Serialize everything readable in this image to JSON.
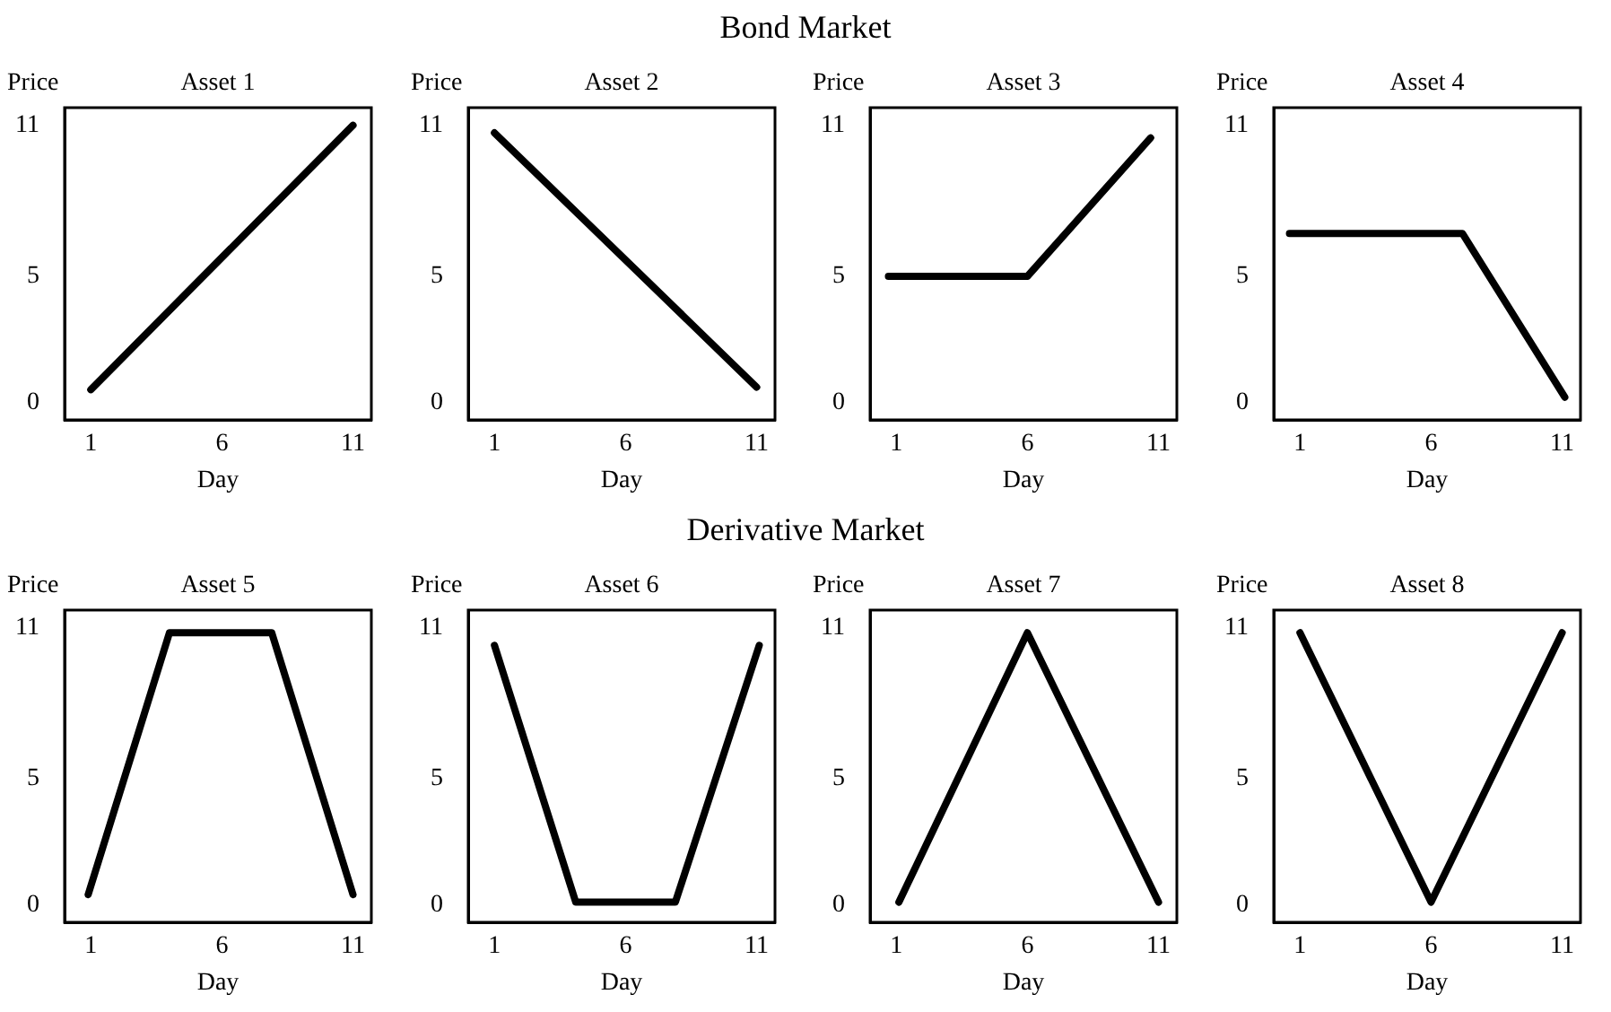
{
  "chart_data": [
    {
      "type": "line",
      "title": "Asset 1",
      "xlabel": "Day",
      "ylabel": "Price",
      "annotations": [
        "Bond Market"
      ],
      "x": [
        1,
        11
      ],
      "values": [
        0.5,
        11
      ],
      "color": "#000000",
      "line_style": "solid",
      "xlim": [
        0,
        11.7
      ],
      "ylim": [
        -0.7,
        11.7
      ],
      "xticks": [
        1,
        6,
        11
      ],
      "yticks": [
        0,
        5,
        11
      ]
    },
    {
      "type": "line",
      "title": "Asset 2",
      "xlabel": "Day",
      "ylabel": "Price",
      "x": [
        1,
        11
      ],
      "values": [
        10.7,
        0.6
      ],
      "color": "#000000",
      "line_style": "solid",
      "xlim": [
        0,
        11.7
      ],
      "ylim": [
        -0.7,
        11.7
      ],
      "xticks": [
        1,
        6,
        11
      ],
      "yticks": [
        0,
        5,
        11
      ]
    },
    {
      "type": "line",
      "title": "Asset 3",
      "xlabel": "Day",
      "ylabel": "Price",
      "x": [
        0.7,
        6,
        10.7
      ],
      "values": [
        5,
        5,
        10.5
      ],
      "color": "#000000",
      "line_style": "solid",
      "xlim": [
        0,
        11.7
      ],
      "ylim": [
        -0.7,
        11.7
      ],
      "xticks": [
        1,
        6,
        11
      ],
      "yticks": [
        0,
        5,
        11
      ]
    },
    {
      "type": "line",
      "title": "Asset 4",
      "xlabel": "Day",
      "ylabel": "Price",
      "x": [
        0.6,
        7.2,
        11.1
      ],
      "values": [
        6.7,
        6.7,
        0.2
      ],
      "color": "#000000",
      "line_style": "solid",
      "xlim": [
        0,
        11.7
      ],
      "ylim": [
        -0.7,
        11.7
      ],
      "xticks": [
        1,
        6,
        11
      ],
      "yticks": [
        0,
        5,
        11
      ]
    },
    {
      "type": "line",
      "title": "Asset 5",
      "xlabel": "Day",
      "ylabel": "Price",
      "annotations": [
        "Derivative Market"
      ],
      "x": [
        0.9,
        4,
        7.9,
        11
      ],
      "values": [
        0.4,
        10.8,
        10.8,
        0.4
      ],
      "color": "#000000",
      "line_style": "solid",
      "xlim": [
        0,
        11.7
      ],
      "ylim": [
        -0.7,
        11.7
      ],
      "xticks": [
        1,
        6,
        11
      ],
      "yticks": [
        0,
        5,
        11
      ]
    },
    {
      "type": "line",
      "title": "Asset 6",
      "xlabel": "Day",
      "ylabel": "Price",
      "x": [
        1,
        4.1,
        7.9,
        11.1
      ],
      "values": [
        10.3,
        0.1,
        0.1,
        10.3
      ],
      "color": "#000000",
      "line_style": "solid",
      "xlim": [
        0,
        11.7
      ],
      "ylim": [
        -0.7,
        11.7
      ],
      "xticks": [
        1,
        6,
        11
      ],
      "yticks": [
        0,
        5,
        11
      ]
    },
    {
      "type": "line",
      "title": "Asset 7",
      "xlabel": "Day",
      "ylabel": "Price",
      "x": [
        1.1,
        6,
        11
      ],
      "values": [
        0.1,
        10.8,
        0.1
      ],
      "color": "#000000",
      "line_style": "solid",
      "xlim": [
        0,
        11.7
      ],
      "ylim": [
        -0.7,
        11.7
      ],
      "xticks": [
        1,
        6,
        11
      ],
      "yticks": [
        0,
        5,
        11
      ]
    },
    {
      "type": "line",
      "title": "Asset 8",
      "xlabel": "Day",
      "ylabel": "Price",
      "x": [
        1,
        6,
        11
      ],
      "values": [
        10.8,
        0.1,
        10.8
      ],
      "color": "#000000",
      "line_style": "solid",
      "xlim": [
        0,
        11.7
      ],
      "ylim": [
        -0.7,
        11.7
      ],
      "xticks": [
        1,
        6,
        11
      ],
      "yticks": [
        0,
        5,
        11
      ]
    }
  ]
}
